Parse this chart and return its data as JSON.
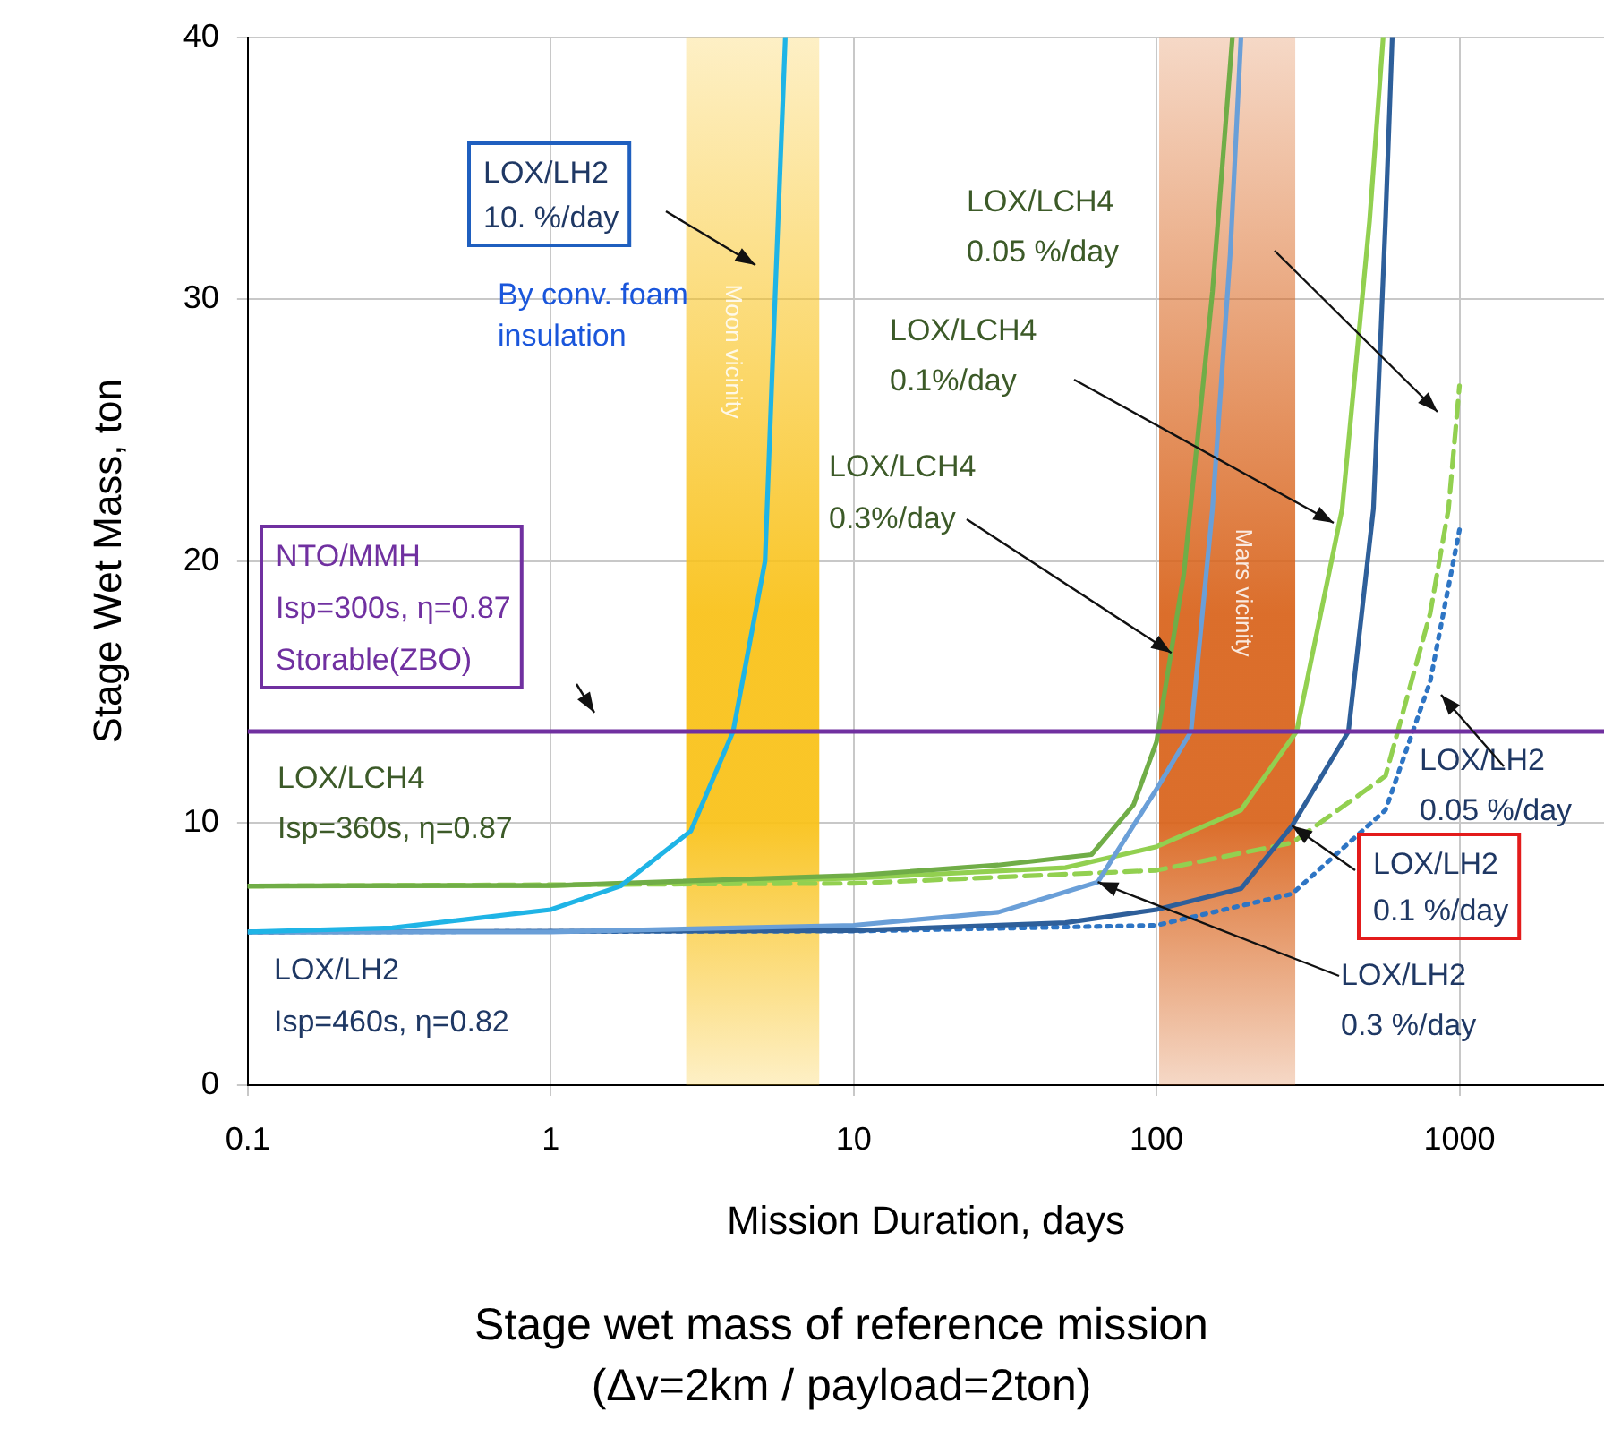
{
  "chart_data": {
    "type": "line",
    "title": "Stage wet mass of reference mission",
    "subtitle": "(Δv=2km / payload=2ton)",
    "xlabel": "Mission Duration, days",
    "ylabel": "Stage Wet Mass, ton",
    "log": "x",
    "xlim": [
      0.1,
      3000
    ],
    "xticks": [
      0.1,
      1,
      10,
      100,
      1000
    ],
    "ylim": [
      0,
      40
    ],
    "yticks": [
      0,
      10,
      20,
      30,
      40
    ],
    "grid": true,
    "legend": false,
    "marker": "none",
    "series": [
      {
        "color": "#7030a0",
        "line_style": "solid",
        "x": [
          0.1,
          3000
        ],
        "values": [
          13.5,
          13.5
        ]
      },
      {
        "color": "#1fb4e6",
        "line_style": "solid",
        "x": [
          0.1,
          0.3,
          1,
          1.7,
          2.9,
          4,
          5.1,
          5.5,
          5.95
        ],
        "values": [
          5.85,
          6.0,
          6.7,
          7.6,
          9.7,
          13.5,
          20,
          30,
          40
        ]
      },
      {
        "color": "#70ad47",
        "line_style": "solid",
        "x": [
          0.1,
          1,
          10,
          30,
          61,
          84,
          100,
          123,
          153,
          178
        ],
        "values": [
          7.6,
          7.62,
          8.0,
          8.4,
          8.8,
          10.7,
          13.1,
          19.5,
          30.3,
          40
        ]
      },
      {
        "color": "#6a9fd8",
        "line_style": "solid",
        "x": [
          0.1,
          1,
          10,
          30,
          64,
          100,
          130,
          153,
          175,
          190
        ],
        "values": [
          5.85,
          5.85,
          6.1,
          6.6,
          7.75,
          11.3,
          13.5,
          22,
          31.7,
          40
        ]
      },
      {
        "color": "#92d050",
        "line_style": "solid",
        "x": [
          0.1,
          1,
          10,
          50,
          100,
          190,
          290,
          410,
          505,
          560
        ],
        "values": [
          7.6,
          7.62,
          7.9,
          8.3,
          9.1,
          10.5,
          13.5,
          22,
          33,
          40
        ]
      },
      {
        "color": "#2e5f9a",
        "line_style": "solid",
        "x": [
          0.1,
          10,
          50,
          100,
          190,
          280,
          430,
          520,
          570,
          600
        ],
        "values": [
          5.85,
          5.9,
          6.2,
          6.7,
          7.5,
          9.9,
          13.5,
          22,
          33,
          40
        ]
      },
      {
        "color": "#92d050",
        "line_style": "dashed",
        "x": [
          0.1,
          10,
          100,
          280,
          570,
          800,
          920,
          1000
        ],
        "values": [
          7.6,
          7.7,
          8.2,
          9.25,
          11.8,
          18,
          22,
          26.7
        ]
      },
      {
        "color": "#2e75c4",
        "line_style": "dotted",
        "x": [
          0.1,
          10,
          100,
          280,
          570,
          800,
          1000
        ],
        "values": [
          5.85,
          5.88,
          6.1,
          7.3,
          10.5,
          15.4,
          21.2
        ]
      }
    ],
    "bands": [
      {
        "axis": "x",
        "from": 2.8,
        "to": 7.7,
        "label": "Moon vicinity",
        "color": "#f9c21a"
      },
      {
        "axis": "x",
        "from": 102,
        "to": 287,
        "label": "Mars vicinity",
        "color": "#d9651e"
      }
    ],
    "annotations": [
      "LOX/LH2\n10. %/day",
      "By conv. foam\ninsulation",
      "NTO/MMH\nIsp=300s, η=0.87\nStorable(ZBO)",
      "LOX/LCH4\nIsp=360s, η=0.87",
      "LOX/LH2\nIsp=460s, η=0.82",
      "LOX/LCH4\n0.05 %/day",
      "LOX/LCH4\n0.1%/day",
      {
        "text": "LOX/LCH4\n0.3%/day",
        "x": 112,
        "y": 16.5
      },
      "LOX/LH2\n0.05 %/day",
      {
        "text": "LOX/LH2\n0.1 %/day",
        "x": 280,
        "y": 9.9
      },
      {
        "text": "LOX/LH2\n0.3 %/day",
        "x": 64,
        "y": 7.75
      }
    ]
  }
}
